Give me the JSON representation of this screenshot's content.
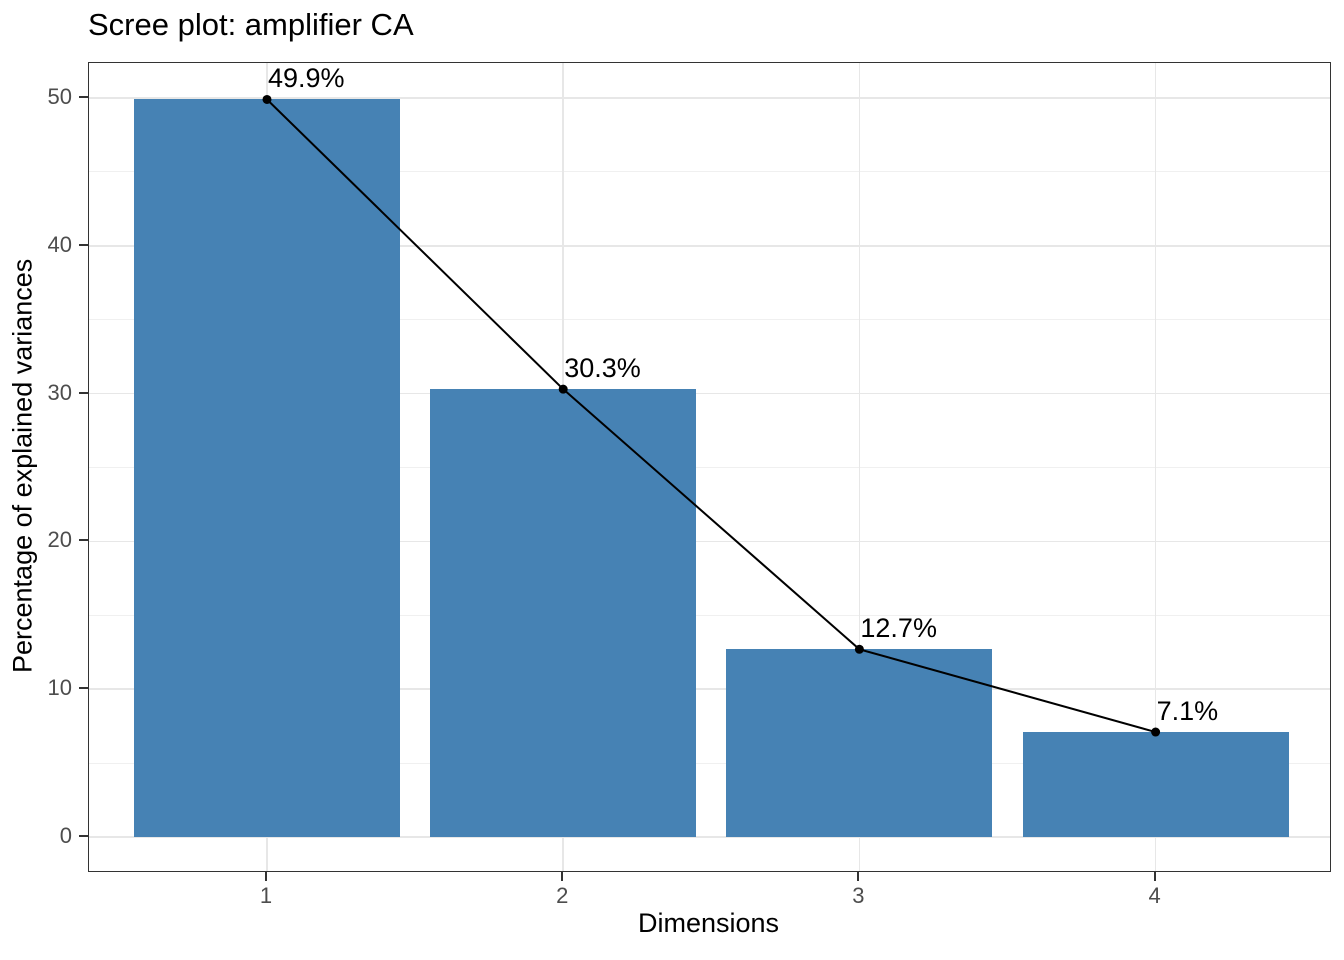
{
  "chart_data": {
    "type": "bar",
    "subtype": "scree-plot-with-line-overlay",
    "title": "Scree plot: amplifier CA",
    "xlabel": "Dimensions",
    "ylabel": "Percentage of explained variances",
    "categories": [
      "1",
      "2",
      "3",
      "4"
    ],
    "values": [
      49.9,
      30.3,
      12.7,
      7.1
    ],
    "point_labels": [
      "49.9%",
      "30.3%",
      "12.7%",
      "7.1%"
    ],
    "yticks": [
      0,
      10,
      20,
      30,
      40,
      50
    ],
    "minor_yticks": [
      5,
      15,
      25,
      35,
      45
    ],
    "ylim": [
      -2.3,
      52.4
    ],
    "grid": true,
    "legend": "none",
    "colors": {
      "bar_fill": "#4682B4",
      "line": "#000000",
      "point": "#000000",
      "label_text": "#000000",
      "axis_text": "#4D4D4D",
      "axis_title": "#000000",
      "tick_mark": "#333333",
      "panel_border": "#333333",
      "grid_major": "#E7E7E7",
      "grid_minor": "#F0F0F0",
      "background": "#FFFFFF"
    }
  }
}
